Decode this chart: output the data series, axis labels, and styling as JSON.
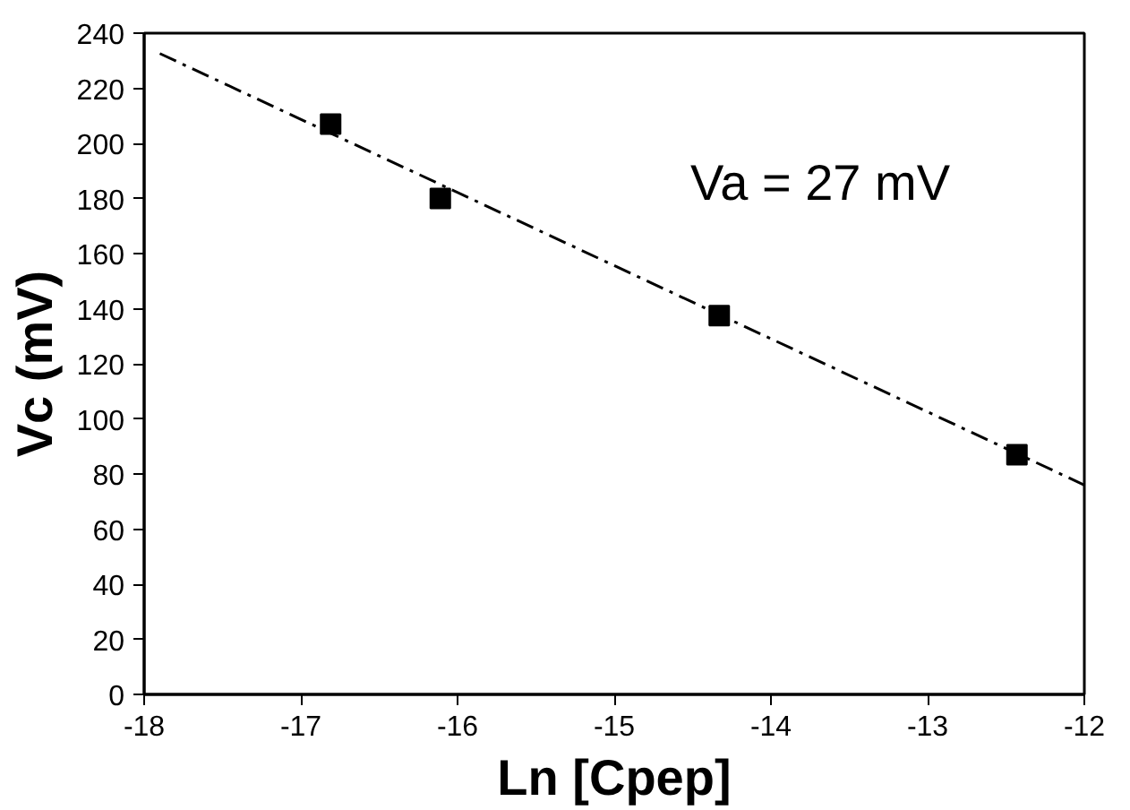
{
  "chart_data": {
    "type": "scatter",
    "xlabel": "Ln [Cpep]",
    "ylabel": "Vc (mV)",
    "x": [
      -16.81,
      -16.11,
      -14.33,
      -12.43
    ],
    "series": [
      {
        "color": "#000000",
        "marker": "square",
        "values": [
          207,
          180,
          137.5,
          87
        ]
      },
      {
        "type": "line",
        "color": "#000000",
        "line_style": "dashdot",
        "x": [
          -17.9,
          -12
        ],
        "values": [
          232.6,
          76
        ]
      }
    ],
    "annotations": [
      "Va = 27 mV"
    ],
    "xlim": [
      -18,
      -12
    ],
    "ylim": [
      0,
      240
    ],
    "xticks": [
      -18,
      -17,
      -16,
      -15,
      -14,
      -13,
      -12
    ],
    "yticks": [
      0,
      20,
      40,
      60,
      80,
      100,
      120,
      140,
      160,
      180,
      200,
      220,
      240
    ],
    "grid": false
  }
}
